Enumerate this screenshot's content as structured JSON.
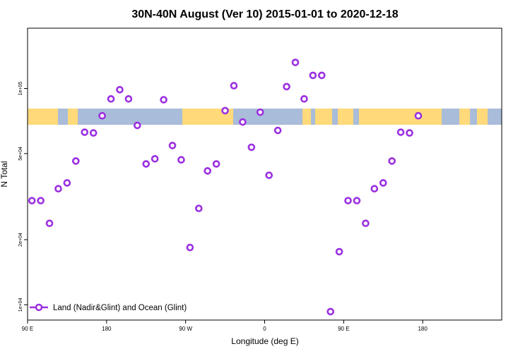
{
  "chart_data": {
    "type": "scatter",
    "title": "30N-40N August (Ver 10)   2015-01-01 to 2020-12-18",
    "xlabel": "Longitude (deg E)",
    "ylabel": "N Total",
    "scale": "log",
    "xlim": [
      -90,
      180
    ],
    "ylim": [
      8500,
      190000
    ],
    "x_ticks": [
      {
        "value": -90,
        "label": "90 E"
      },
      {
        "value": -45,
        "label": "180"
      },
      {
        "value": 0,
        "label": "90 W"
      },
      {
        "value": 45,
        "label": "0"
      },
      {
        "value": 90,
        "label": "90 E"
      },
      {
        "value": 135,
        "label": "180"
      }
    ],
    "y_ticks": [
      {
        "value": 10000,
        "label": "1e+04"
      },
      {
        "value": 20000,
        "label": "2e+04"
      },
      {
        "value": 50000,
        "label": "5e+04"
      },
      {
        "value": 100000,
        "label": "1e+05"
      }
    ],
    "map_band": {
      "ocean_color": "#a9bcd9",
      "land_color": "#ffd97a"
    },
    "legend": {
      "label": "Land (Nadir&Glint) and Ocean (Glint)",
      "position": "bottom-left"
    },
    "series": [
      {
        "name": "Land (Nadir&Glint) and Ocean (Glint)",
        "color": "#9b30e0",
        "points": [
          {
            "x": -87.5,
            "y": 30300
          },
          {
            "x": -82.5,
            "y": 30300
          },
          {
            "x": -77.5,
            "y": 23800
          },
          {
            "x": -72.5,
            "y": 34400
          },
          {
            "x": -67.5,
            "y": 36600
          },
          {
            "x": -62.5,
            "y": 46200
          },
          {
            "x": -57.5,
            "y": 62800
          },
          {
            "x": -52.5,
            "y": 62300
          },
          {
            "x": -47.5,
            "y": 74800
          },
          {
            "x": -42.5,
            "y": 89500
          },
          {
            "x": -37.5,
            "y": 98700
          },
          {
            "x": -32.5,
            "y": 89500
          },
          {
            "x": -27.5,
            "y": 67500
          },
          {
            "x": -22.5,
            "y": 44800
          },
          {
            "x": -17.5,
            "y": 47300
          },
          {
            "x": -12.5,
            "y": 88700
          },
          {
            "x": -7.5,
            "y": 54500
          },
          {
            "x": -2.5,
            "y": 46800
          },
          {
            "x": 2.5,
            "y": 18400
          },
          {
            "x": 7.5,
            "y": 27900
          },
          {
            "x": 12.5,
            "y": 41600
          },
          {
            "x": 17.5,
            "y": 44800
          },
          {
            "x": 22.5,
            "y": 79000
          },
          {
            "x": 27.5,
            "y": 103000
          },
          {
            "x": 32.5,
            "y": 70000
          },
          {
            "x": 37.5,
            "y": 53500
          },
          {
            "x": 42.5,
            "y": 77700
          },
          {
            "x": 47.5,
            "y": 39700
          },
          {
            "x": 52.5,
            "y": 64000
          },
          {
            "x": 57.5,
            "y": 102000
          },
          {
            "x": 62.5,
            "y": 132000
          },
          {
            "x": 67.5,
            "y": 89500
          },
          {
            "x": 72.5,
            "y": 115000
          },
          {
            "x": 77.5,
            "y": 115000
          },
          {
            "x": 82.5,
            "y": 9300
          },
          {
            "x": 87.5,
            "y": 17600
          },
          {
            "x": 92.5,
            "y": 30300
          },
          {
            "x": 97.5,
            "y": 30300
          },
          {
            "x": 102.5,
            "y": 23800
          },
          {
            "x": 107.5,
            "y": 34400
          },
          {
            "x": 112.5,
            "y": 36600
          },
          {
            "x": 117.5,
            "y": 46200
          },
          {
            "x": 122.5,
            "y": 62800
          },
          {
            "x": 127.5,
            "y": 62300
          },
          {
            "x": 132.5,
            "y": 74800
          }
        ]
      }
    ]
  }
}
